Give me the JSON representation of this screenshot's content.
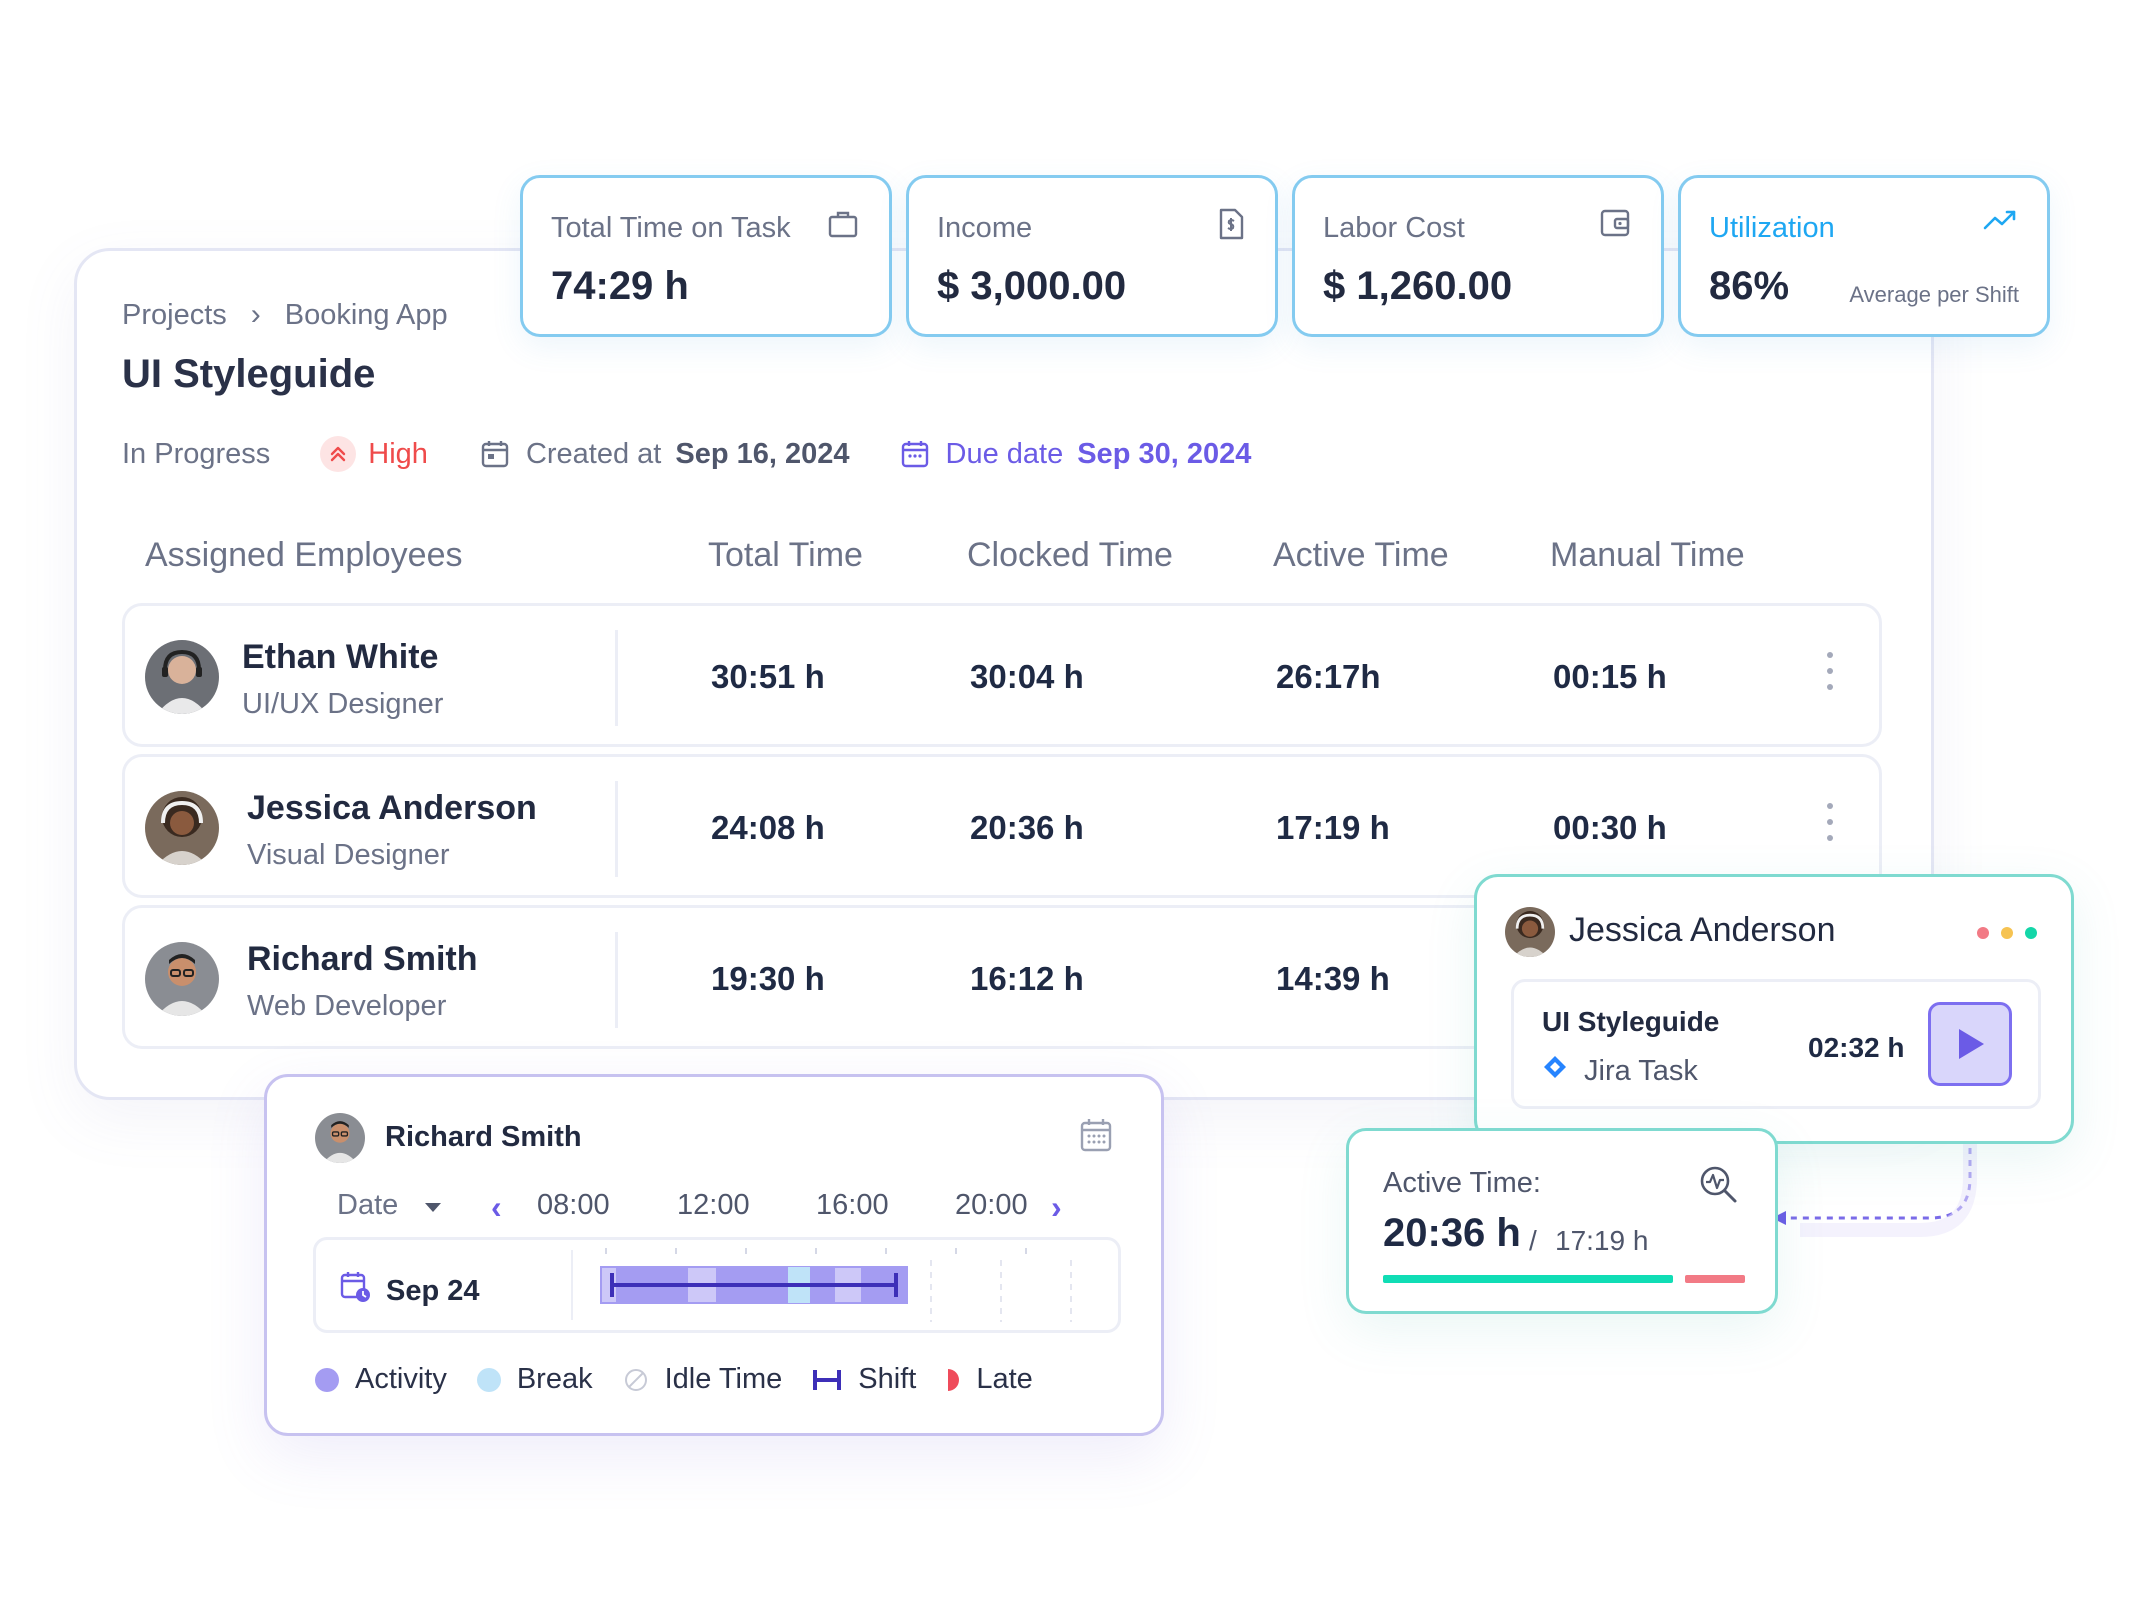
{
  "breadcrumb": {
    "root": "Projects",
    "current": "Booking App"
  },
  "page_title": "UI Styleguide",
  "meta": {
    "status": "In Progress",
    "priority": "High",
    "created_label": "Created at",
    "created_value": "Sep 16, 2024",
    "due_label": "Due date",
    "due_value": "Sep 30, 2024"
  },
  "stats": [
    {
      "label": "Total Time on Task",
      "value": "74:29 h",
      "icon": "briefcase-icon"
    },
    {
      "label": "Income",
      "value": "$ 3,000.00",
      "icon": "invoice-icon"
    },
    {
      "label": "Labor Cost",
      "value": "$ 1,260.00",
      "icon": "wallet-icon"
    },
    {
      "label": "Utilization",
      "value": "86%",
      "sub": "Average per Shift",
      "icon": "trend-up-icon",
      "accent": "#1ea7f2"
    }
  ],
  "table": {
    "headers": [
      "Assigned Employees",
      "Total Time",
      "Clocked Time",
      "Active Time",
      "Manual Time"
    ],
    "rows": [
      {
        "name": "Ethan White",
        "role": "UI/UX Designer",
        "total": "30:51 h",
        "clocked": "30:04 h",
        "active": "26:17h",
        "manual": "00:15 h"
      },
      {
        "name": "Jessica Anderson",
        "role": "Visual Designer",
        "total": "24:08 h",
        "clocked": "20:36 h",
        "active": "17:19 h",
        "manual": "00:30 h"
      },
      {
        "name": "Richard Smith",
        "role": "Web Developer",
        "total": "19:30 h",
        "clocked": "16:12 h",
        "active": "14:39 h",
        "manual": ""
      }
    ]
  },
  "timeline": {
    "name": "Richard Smith",
    "date_label": "Date",
    "hours": [
      "08:00",
      "12:00",
      "16:00",
      "20:00"
    ],
    "day": "Sep 24",
    "legend": [
      "Activity",
      "Break",
      "Idle Time",
      "Shift",
      "Late"
    ],
    "colors": {
      "activity": "#a49cf2",
      "break": "#bfe3f8",
      "shift": "#3d2fb8",
      "late": "#ef4b5b"
    }
  },
  "player": {
    "name": "Jessica Anderson",
    "task": "UI Styleguide",
    "source": "Jira Task",
    "time": "02:32 h"
  },
  "active_time": {
    "label": "Active Time:",
    "value": "20:36 h",
    "separator": "/",
    "sub": "17:19 h"
  }
}
